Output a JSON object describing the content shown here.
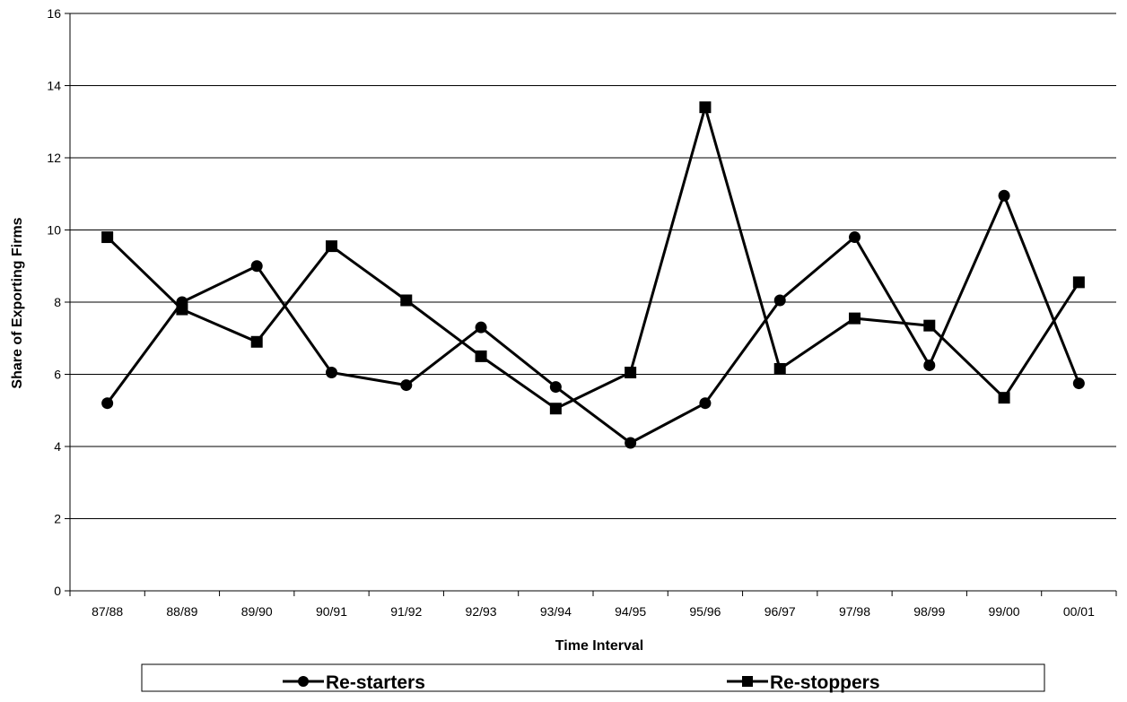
{
  "chart_data": {
    "type": "line",
    "title": "",
    "xlabel": "Time Interval",
    "ylabel": "Share of Exporting Firms",
    "ylim": [
      0,
      16
    ],
    "yticks": [
      0,
      2,
      4,
      6,
      8,
      10,
      12,
      14,
      16
    ],
    "grid": true,
    "legend_position": "bottom",
    "categories": [
      "87/88",
      "88/89",
      "89/90",
      "90/91",
      "91/92",
      "92/93",
      "93/94",
      "94/95",
      "95/96",
      "96/97",
      "97/98",
      "98/99",
      "99/00",
      "00/01"
    ],
    "series": [
      {
        "name": "Re-starters",
        "marker": "circle",
        "color": "#000000",
        "values": [
          5.2,
          8.0,
          9.0,
          6.05,
          5.7,
          7.3,
          5.65,
          4.1,
          5.2,
          8.05,
          9.8,
          6.25,
          10.95,
          5.75
        ]
      },
      {
        "name": "Re-stoppers",
        "marker": "square",
        "color": "#000000",
        "values": [
          9.8,
          7.8,
          6.9,
          9.55,
          8.05,
          6.5,
          5.05,
          6.05,
          13.4,
          6.15,
          7.55,
          7.35,
          5.35,
          8.55
        ]
      }
    ]
  }
}
